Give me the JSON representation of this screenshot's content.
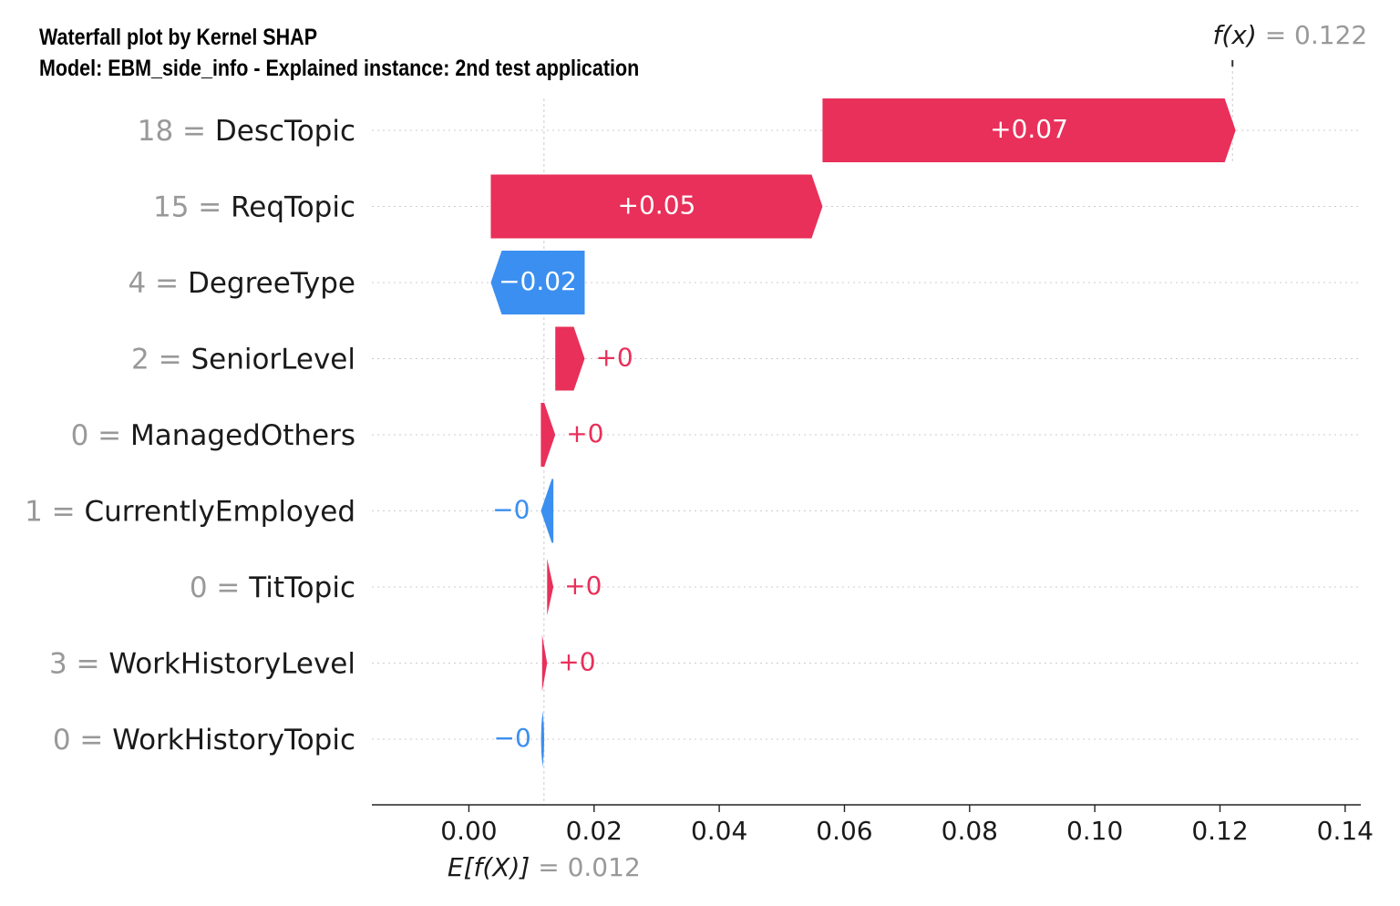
{
  "title_line1": "Waterfall plot by Kernel SHAP",
  "title_line2": "Model: EBM_side_info - Explained instance: 2nd test application",
  "chart_data": {
    "type": "waterfall",
    "base_value": 0.012,
    "base_label_text": "E[f(X)]",
    "base_value_text": "= 0.012",
    "output_value": 0.122,
    "output_label_text": "f(x)",
    "output_value_text": "= 0.122",
    "features": [
      {
        "value": "18",
        "name": "DescTopic",
        "shap": 0.066,
        "label": "+0.07"
      },
      {
        "value": "15",
        "name": "ReqTopic",
        "shap": 0.053,
        "label": "+0.05"
      },
      {
        "value": "4",
        "name": "DegreeType",
        "shap": -0.015,
        "label": "−0.02"
      },
      {
        "value": "2",
        "name": "SeniorLevel",
        "shap": 0.0047,
        "label": "+0"
      },
      {
        "value": "0",
        "name": "ManagedOthers",
        "shap": 0.0023,
        "label": "+0"
      },
      {
        "value": "1",
        "name": "CurrentlyEmployed",
        "shap": -0.002,
        "label": "−0"
      },
      {
        "value": "0",
        "name": "TitTopic",
        "shap": 0.001,
        "label": "+0"
      },
      {
        "value": "3",
        "name": "WorkHistoryLevel",
        "shap": 0.0008,
        "label": "+0"
      },
      {
        "value": "0",
        "name": "WorkHistoryTopic",
        "shap": -0.0003,
        "label": "−0"
      }
    ],
    "xticks": [
      0.0,
      0.02,
      0.04,
      0.06,
      0.08,
      0.1,
      0.12,
      0.14
    ],
    "xtick_labels": [
      "0.00",
      "0.02",
      "0.04",
      "0.06",
      "0.08",
      "0.10",
      "0.12",
      "0.14"
    ],
    "xlim": [
      -0.0155,
      0.1425
    ],
    "colors": {
      "positive": "#e8305a",
      "negative": "#3b8ff0",
      "label_gray": "#999999",
      "text": "#1a1a1a",
      "grid": "#cccccc"
    }
  }
}
